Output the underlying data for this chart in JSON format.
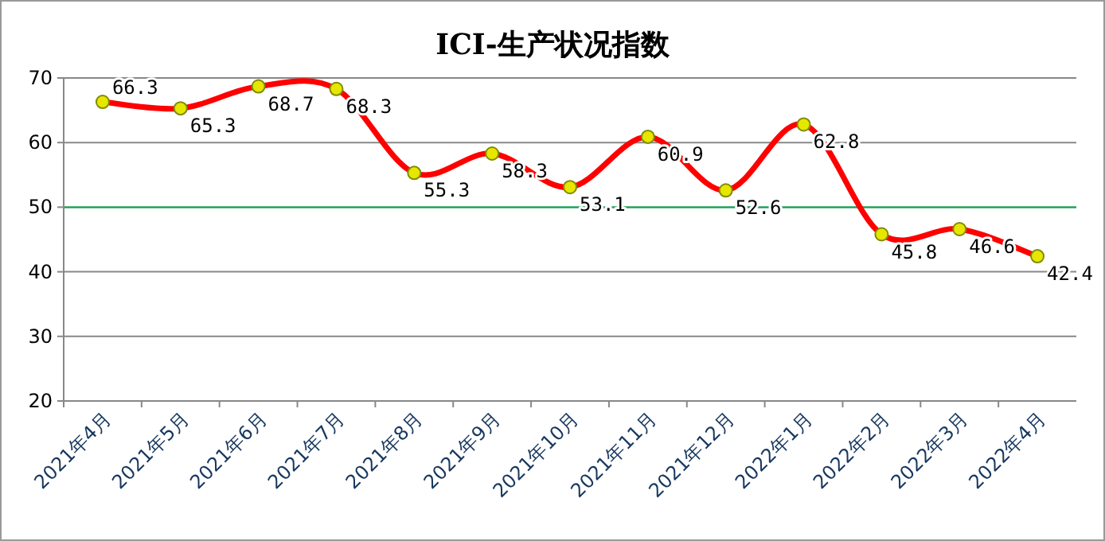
{
  "chart_data": {
    "type": "line",
    "title": "ICI-生产状况指数",
    "categories": [
      "2021年4月",
      "2021年5月",
      "2021年6月",
      "2021年7月",
      "2021年8月",
      "2021年9月",
      "2021年10月",
      "2021年11月",
      "2021年12月",
      "2022年1月",
      "2022年2月",
      "2022年3月",
      "2022年4月"
    ],
    "series": [
      {
        "color": "#ff0000",
        "values": [
          66.3,
          65.3,
          68.7,
          68.3,
          55.3,
          58.3,
          53.1,
          60.9,
          52.6,
          62.8,
          45.8,
          46.6,
          42.4
        ]
      }
    ],
    "ylim": [
      20,
      70
    ],
    "yticks": [
      20,
      30,
      40,
      50,
      60,
      70
    ],
    "grid": "y",
    "marker": "circle",
    "line_style": "solid",
    "data_labels": true,
    "ref_lines": [
      {
        "axis": "y",
        "value": 50,
        "color": "#00b050"
      }
    ]
  }
}
